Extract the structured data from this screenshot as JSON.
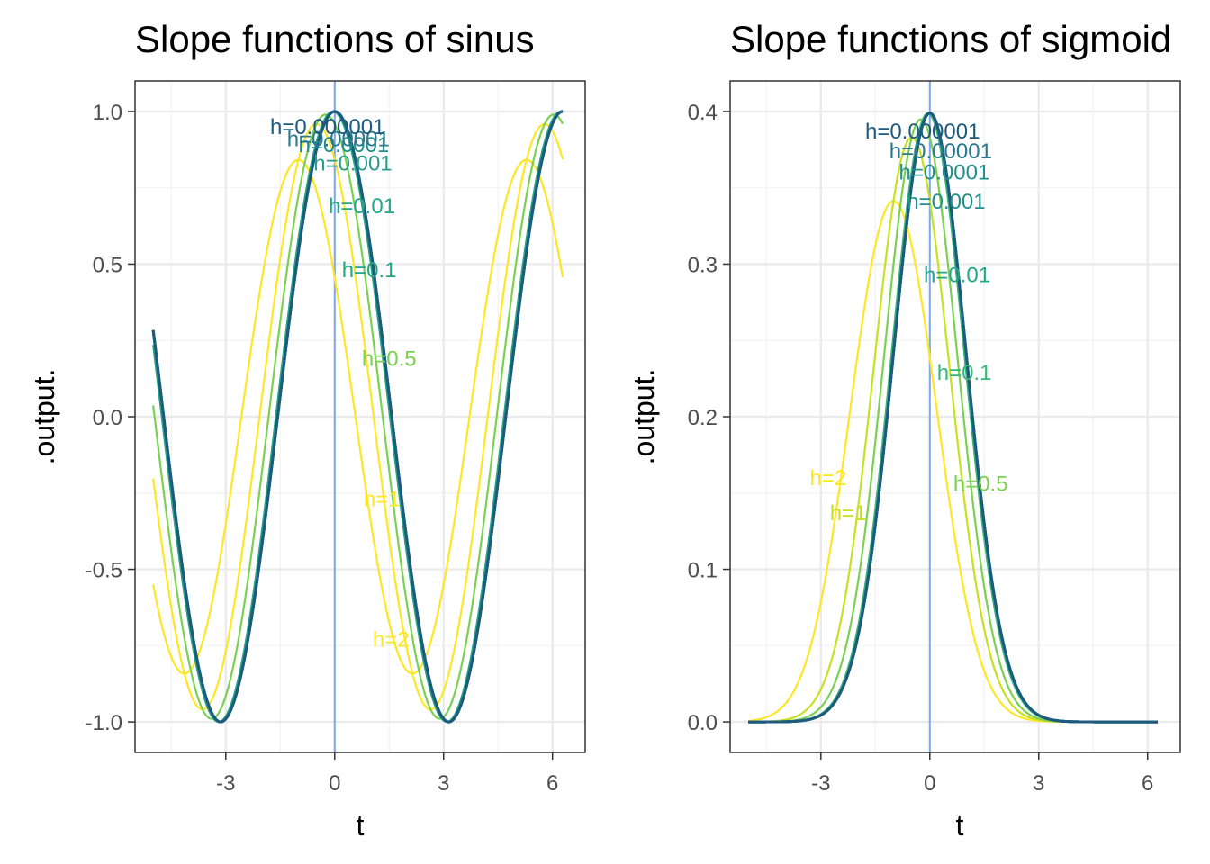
{
  "chart_data": [
    {
      "type": "line",
      "title": "Slope functions of sinus",
      "xlabel": "t",
      "ylabel": ".output.",
      "xlim": [
        -5.5,
        6.9
      ],
      "ylim": [
        -1.1,
        1.1
      ],
      "x_ticks": [
        -3,
        0,
        3,
        6
      ],
      "x_tick_labels": [
        "-3",
        "0",
        "3",
        "6"
      ],
      "y_ticks": [
        -1.0,
        -0.5,
        0.0,
        0.5,
        1.0
      ],
      "y_tick_labels": [
        "-1.0",
        "-0.5",
        "0.0",
        "0.5",
        "1.0"
      ],
      "x_range": [
        -5,
        6.28
      ],
      "vline": 0,
      "vline_color": "#7fa8f0",
      "grid": true,
      "legend": "none",
      "series_function": "(sin(t + h) - sin(t)) / h",
      "series": [
        {
          "h": 2,
          "label": "h=2",
          "color": "#fde725",
          "label_pos": [
            1.55,
            -0.73
          ]
        },
        {
          "h": 1,
          "label": "h=1",
          "color": "#fde725",
          "label_pos": [
            1.3,
            -0.27
          ]
        },
        {
          "h": 0.5,
          "label": "h=0.5",
          "color": "#7ad151",
          "label_pos": [
            1.5,
            0.19
          ]
        },
        {
          "h": 0.1,
          "label": "h=0.1",
          "color": "#22a884",
          "label_pos": [
            0.95,
            0.48
          ]
        },
        {
          "h": 0.01,
          "label": "h=0.01",
          "color": "#22a884",
          "label_pos": [
            0.75,
            0.69
          ]
        },
        {
          "h": 0.001,
          "label": "h=0.001",
          "color": "#2a9c8a",
          "label_pos": [
            0.5,
            0.83
          ]
        },
        {
          "h": 0.0001,
          "label": "h=0.0001",
          "color": "#21908c",
          "label_pos": [
            0.25,
            0.89
          ]
        },
        {
          "h": 1e-05,
          "label": "h=0.00001",
          "color": "#2a788e",
          "label_pos": [
            0.1,
            0.91
          ]
        },
        {
          "h": 1e-06,
          "label": "h=0.000001",
          "color": "#1e5a7e",
          "label_pos": [
            -0.2,
            0.95
          ]
        }
      ]
    },
    {
      "type": "line",
      "title": "Slope functions of sigmoid",
      "xlabel": "t",
      "ylabel": ".output.",
      "xlim": [
        -5.5,
        6.9
      ],
      "ylim": [
        -0.02,
        0.42
      ],
      "x_ticks": [
        -3,
        0,
        3,
        6
      ],
      "x_tick_labels": [
        "-3",
        "0",
        "3",
        "6"
      ],
      "y_ticks": [
        0.0,
        0.1,
        0.2,
        0.3,
        0.4
      ],
      "y_tick_labels": [
        "0.0",
        "0.1",
        "0.2",
        "0.3",
        "0.4"
      ],
      "x_range": [
        -5,
        6.28
      ],
      "vline": 0,
      "vline_color": "#7fa8f0",
      "grid": true,
      "legend": "none",
      "series_function": "(N(t + h) - N(t)) / h, N = standard normal CDF",
      "series": [
        {
          "h": 2,
          "label": "h=2",
          "color": "#fde725",
          "label_pos": [
            -2.8,
            0.16
          ]
        },
        {
          "h": 1,
          "label": "h=1",
          "color": "#c8e020",
          "label_pos": [
            -2.25,
            0.137
          ]
        },
        {
          "h": 0.5,
          "label": "h=0.5",
          "color": "#7ad151",
          "label_pos": [
            1.4,
            0.156
          ]
        },
        {
          "h": 0.1,
          "label": "h=0.1",
          "color": "#35b779",
          "label_pos": [
            0.95,
            0.229
          ]
        },
        {
          "h": 0.01,
          "label": "h=0.01",
          "color": "#22a884",
          "label_pos": [
            0.75,
            0.293
          ]
        },
        {
          "h": 0.001,
          "label": "h=0.001",
          "color": "#21908c",
          "label_pos": [
            0.45,
            0.341
          ]
        },
        {
          "h": 0.0001,
          "label": "h=0.0001",
          "color": "#21908c",
          "label_pos": [
            0.4,
            0.36
          ]
        },
        {
          "h": 1e-05,
          "label": "h=0.00001",
          "color": "#2a788e",
          "label_pos": [
            0.3,
            0.374
          ]
        },
        {
          "h": 1e-06,
          "label": "h=0.000001",
          "color": "#1e5a7e",
          "label_pos": [
            -0.2,
            0.387
          ]
        }
      ]
    }
  ]
}
